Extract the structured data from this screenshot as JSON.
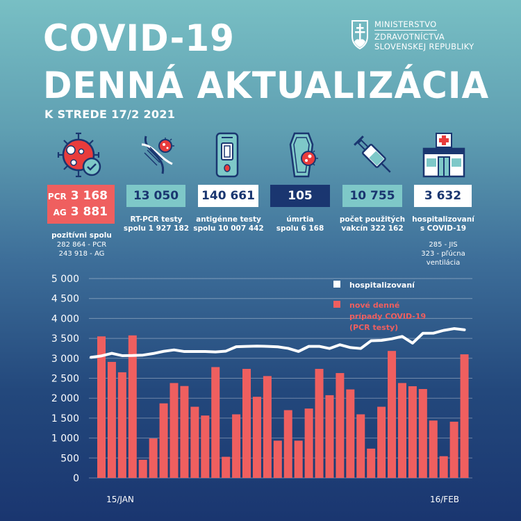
{
  "header": {
    "title_line1": "COVID-19",
    "title_line2": "DENNÁ AKTUALIZÁCIA",
    "subtitle": "K STREDE 17/2 2021",
    "ministry": {
      "line1": "MINISTERSTVO",
      "line2": "ZDRAVOTNÍCTVA",
      "line3": "SLOVENSKEJ REPUBLIKY",
      "icon": "slovak-coat-of-arms-icon"
    }
  },
  "colors": {
    "red": "#ef5f5f",
    "teal": "#7ec8c8",
    "navy": "#1a3670",
    "white": "#ffffff"
  },
  "stats": {
    "positive": {
      "icon": "virus-check-icon",
      "pcr_label": "PCR",
      "pcr_value": "3 168",
      "ag_label": "AG",
      "ag_value": "3 881",
      "caption_title": "pozitívni spolu",
      "caption_line2": "282 864 - PCR",
      "caption_line3": "243 918 - AG"
    },
    "rtpcr": {
      "icon": "dna-virus-icon",
      "value": "13 050",
      "caption_line1": "RT-PCR testy",
      "caption_line2": "spolu 1 927 182"
    },
    "antigen": {
      "icon": "antigen-test-icon",
      "value": "140 661",
      "caption_line1": "antigénne testy",
      "caption_line2": "spolu 10 007 442"
    },
    "deaths": {
      "icon": "coffin-virus-icon",
      "value": "105",
      "caption_line1": "úmrtia",
      "caption_line2": "spolu 6 168"
    },
    "vaccines": {
      "icon": "syringe-icon",
      "value": "10 755",
      "caption_line1": "počet použitých",
      "caption_line2": "vakcín 322 162"
    },
    "hospitalized": {
      "icon": "hospital-icon",
      "value": "3 632",
      "caption_line1": "hospitalizovaní",
      "caption_line2": "s COVID-19",
      "caption_line3": "285 - JIS",
      "caption_line4": "323 - pľúcna ventilácia"
    }
  },
  "chart_data": {
    "type": "bar",
    "title": "",
    "xlabel": "",
    "ylabel": "",
    "ylim": [
      0,
      5000
    ],
    "yticks": [
      0,
      500,
      1000,
      1500,
      2000,
      2500,
      3000,
      3500,
      4000,
      4500,
      5000
    ],
    "ytick_labels": [
      "0",
      "500",
      "1 000",
      "1 500",
      "2 000",
      "2 500",
      "3 000",
      "3 500",
      "4 000",
      "4 500",
      "5 000"
    ],
    "grid": true,
    "legend_position": "top-right",
    "x_labels": [
      {
        "index": 0,
        "label": "15/JAN"
      },
      {
        "index": 32,
        "label": "16/FEB"
      }
    ],
    "series": [
      {
        "name": "nové denné prípady COVID-19 (PCR testy)",
        "legend_lines": [
          "nové denné",
          "prípady COVID-19",
          "(PCR testy)"
        ],
        "type": "bar",
        "color": "#ef5f5f",
        "values": [
          3550,
          2910,
          2650,
          3575,
          455,
          990,
          1870,
          2380,
          2305,
          1785,
          1565,
          2780,
          530,
          1595,
          2735,
          2035,
          2555,
          935,
          1700,
          935,
          1740,
          2735,
          2075,
          2630,
          2220,
          1595,
          735,
          1785,
          3185,
          2380,
          2300,
          2230,
          1440,
          545,
          1410,
          3100
        ]
      },
      {
        "name": "hospitalizovaní",
        "legend_lines": [
          "hospitalizovaní"
        ],
        "type": "line",
        "color": "#ffffff",
        "values": [
          3060,
          3125,
          3067,
          3070,
          3080,
          3120,
          3175,
          3211,
          3170,
          3170,
          3170,
          3160,
          3180,
          3290,
          3300,
          3305,
          3300,
          3288,
          3250,
          3172,
          3300,
          3300,
          3246,
          3340,
          3270,
          3246,
          3440,
          3450,
          3490,
          3548,
          3380,
          3628,
          3630,
          3700,
          3745,
          3715
        ]
      }
    ]
  }
}
